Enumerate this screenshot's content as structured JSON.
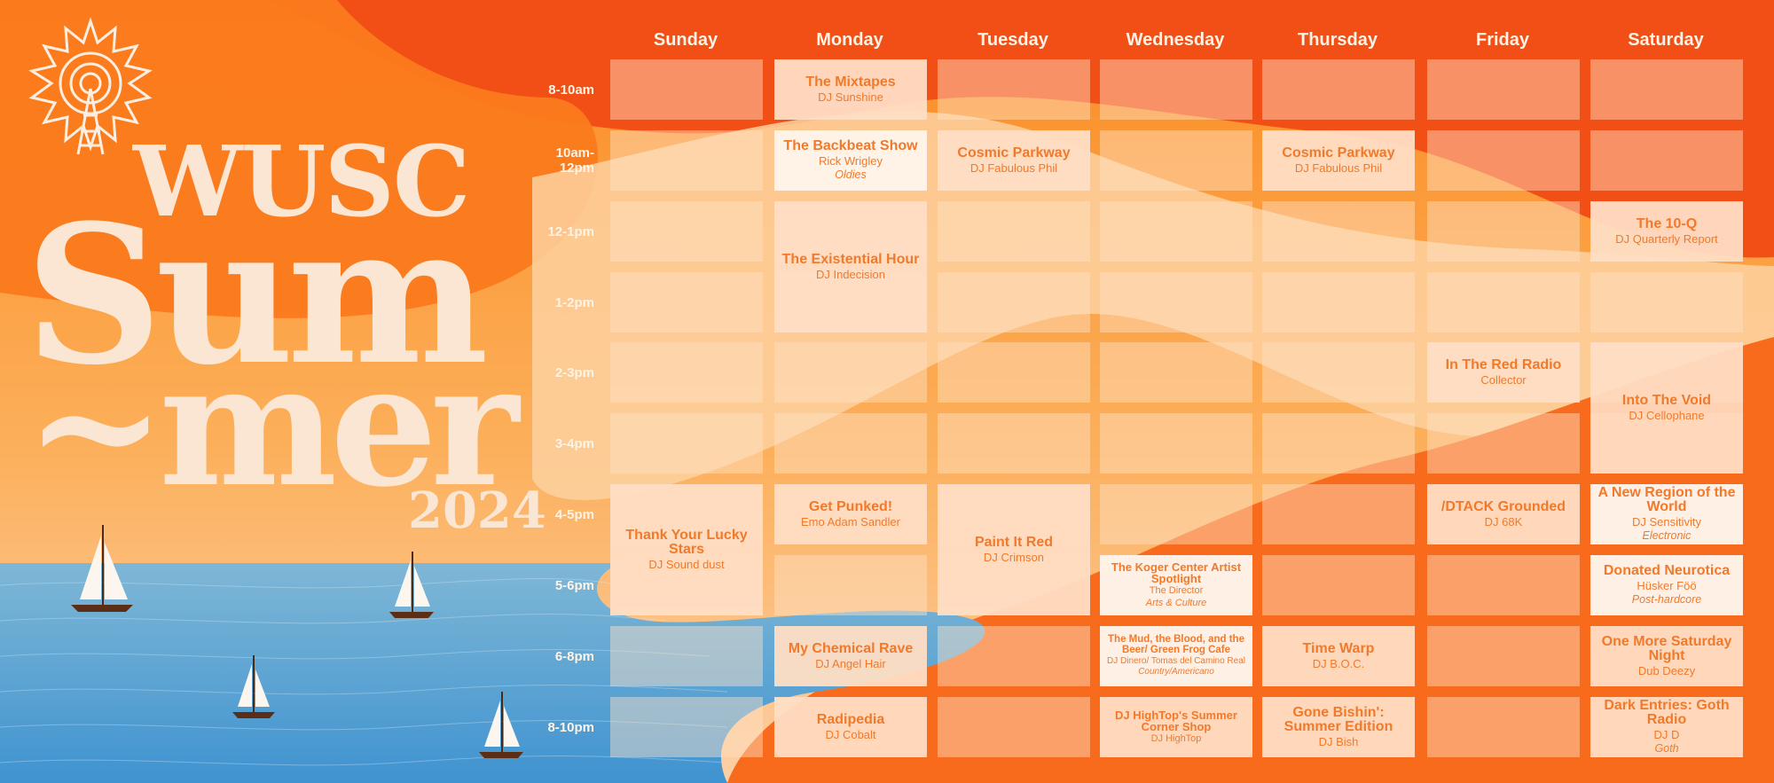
{
  "title": {
    "station": "WUSC",
    "line1": "Sum",
    "line2": "~mer",
    "year": "2024"
  },
  "days": [
    "Sunday",
    "Monday",
    "Tuesday",
    "Wednesday",
    "Thursday",
    "Friday",
    "Saturday"
  ],
  "times": [
    "8-10am",
    "10am-\n12pm",
    "12-1pm",
    "1-2pm",
    "2-3pm",
    "3-4pm",
    "4-5pm",
    "5-6pm",
    "6-8pm",
    "8-10pm"
  ],
  "shows": [
    {
      "day": 1,
      "start": 0,
      "span": 1,
      "name": "The Mixtapes",
      "host": "DJ Sunshine"
    },
    {
      "day": 1,
      "start": 1,
      "span": 1,
      "name": "The Backbeat Show",
      "host": "Rick Wrigley",
      "genre": "Oldies",
      "style": "white"
    },
    {
      "day": 2,
      "start": 1,
      "span": 1,
      "name": "Cosmic Parkway",
      "host": "DJ Fabulous Phil"
    },
    {
      "day": 4,
      "start": 1,
      "span": 1,
      "name": "Cosmic Parkway",
      "host": "DJ Fabulous Phil"
    },
    {
      "day": 6,
      "start": 2,
      "span": 1,
      "name": "The 10-Q",
      "host": "DJ Quarterly Report"
    },
    {
      "day": 1,
      "start": 2,
      "span": 2,
      "name": "The Existential Hour",
      "host": "DJ Indecision"
    },
    {
      "day": 5,
      "start": 4,
      "span": 1,
      "name": "In The Red Radio",
      "host": "Collector"
    },
    {
      "day": 6,
      "start": 4,
      "span": 2,
      "name": "Into The Void",
      "host": "DJ Cellophane"
    },
    {
      "day": 0,
      "start": 6,
      "span": 2,
      "name": "Thank Your Lucky Stars",
      "host": "DJ Sound dust"
    },
    {
      "day": 1,
      "start": 6,
      "span": 1,
      "name": "Get Punked!",
      "host": "Emo Adam Sandler"
    },
    {
      "day": 2,
      "start": 6,
      "span": 2,
      "name": "Paint It Red",
      "host": "DJ Crimson"
    },
    {
      "day": 5,
      "start": 6,
      "span": 1,
      "name": "/DTACK Grounded",
      "host": "DJ 68K"
    },
    {
      "day": 6,
      "start": 6,
      "span": 1,
      "name": "A New Region of the World",
      "host": "DJ Sensitivity",
      "genre": "Electronic",
      "style": "white"
    },
    {
      "day": 3,
      "start": 7,
      "span": 1,
      "name": "The Koger Center Artist Spotlight",
      "host": "The Director",
      "genre": "Arts & Culture",
      "style": "white",
      "size": "small"
    },
    {
      "day": 6,
      "start": 7,
      "span": 1,
      "name": "Donated Neurotica",
      "host": "Hüsker Föö",
      "genre": "Post-hardcore",
      "style": "white"
    },
    {
      "day": 1,
      "start": 8,
      "span": 1,
      "name": "My Chemical Rave",
      "host": "DJ Angel Hair"
    },
    {
      "day": 3,
      "start": 8,
      "span": 1,
      "name": "The Mud, the Blood, and the Beer/ Green Frog Cafe",
      "host": "DJ Dinero/ Tomas del Camino Real",
      "genre": "Country/Americano",
      "style": "white",
      "size": "tiny"
    },
    {
      "day": 4,
      "start": 8,
      "span": 1,
      "name": "Time Warp",
      "host": "DJ B.O.C."
    },
    {
      "day": 6,
      "start": 8,
      "span": 1,
      "name": "One More Saturday Night",
      "host": "Dub Deezy"
    },
    {
      "day": 1,
      "start": 9,
      "span": 1,
      "name": "Radipedia",
      "host": "DJ Cobalt"
    },
    {
      "day": 3,
      "start": 9,
      "span": 1,
      "name": "DJ HighTop's Summer Corner Shop",
      "host": "DJ HighTop",
      "size": "small"
    },
    {
      "day": 4,
      "start": 9,
      "span": 1,
      "name": "Gone Bishin':  Summer Edition",
      "host": "DJ Bish"
    },
    {
      "day": 6,
      "start": 9,
      "span": 1,
      "name": "Dark Entries: Goth Radio",
      "host": "DJ D",
      "genre": "Goth"
    }
  ],
  "colors": {
    "accent": "#f07a2c",
    "cream": "#fbe6d4",
    "sea": "#5fa8d3",
    "orange_deep": "#f0501a",
    "orange": "#fb8a24"
  },
  "icons": {
    "logo": "radio-tower-sun-icon",
    "boat": "sailboat-icon"
  }
}
